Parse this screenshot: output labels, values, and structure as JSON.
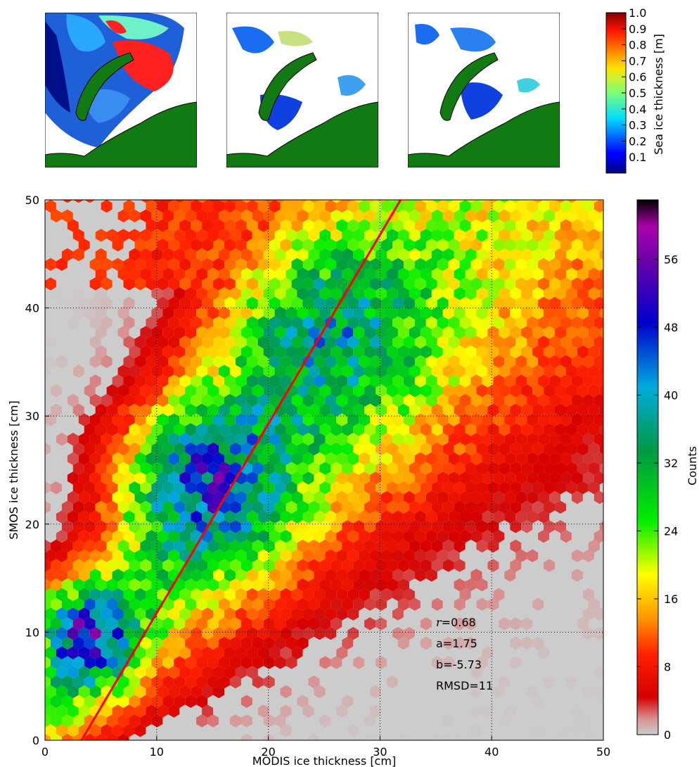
{
  "top_maps": {
    "panels": [
      {
        "id": "left",
        "description_fill": "dense"
      },
      {
        "id": "middle",
        "description_fill": "sparse-fine"
      },
      {
        "id": "right",
        "description_fill": "sparse"
      }
    ],
    "colorbar": {
      "label": "Sea ice thickness [m]",
      "ticks": [
        "0.1",
        "0.2",
        "0.3",
        "0.4",
        "0.5",
        "0.6",
        "0.7",
        "0.8",
        "0.9",
        "1.0"
      ],
      "colormap": "jet",
      "range": [
        0,
        1.0
      ]
    },
    "colors": {
      "land": "#127a12",
      "ocean": "#ffffff"
    }
  },
  "chart_data": {
    "type": "hexbin",
    "xlabel": "MODIS ice thickness [cm]",
    "ylabel": "SMOS ice thickness [cm]",
    "xlim": [
      0,
      50
    ],
    "ylim": [
      0,
      50
    ],
    "xticks": [
      "0",
      "10",
      "20",
      "30",
      "40",
      "50"
    ],
    "yticks": [
      "0",
      "10",
      "20",
      "30",
      "40",
      "50"
    ],
    "grid": true,
    "background": "#cccccc",
    "colorbar": {
      "label": "Counts",
      "ticks": [
        "0",
        "8",
        "16",
        "24",
        "32",
        "40",
        "48",
        "56"
      ],
      "range": [
        0,
        63
      ]
    },
    "fit_line": {
      "slope": 1.75,
      "intercept": -5.73,
      "color": "#ff0000"
    },
    "annotations": {
      "r_label": "r",
      "r_value": "=0.68",
      "a": "a=1.75",
      "b": "b=-5.73",
      "rmsd": "RMSD=11"
    }
  }
}
